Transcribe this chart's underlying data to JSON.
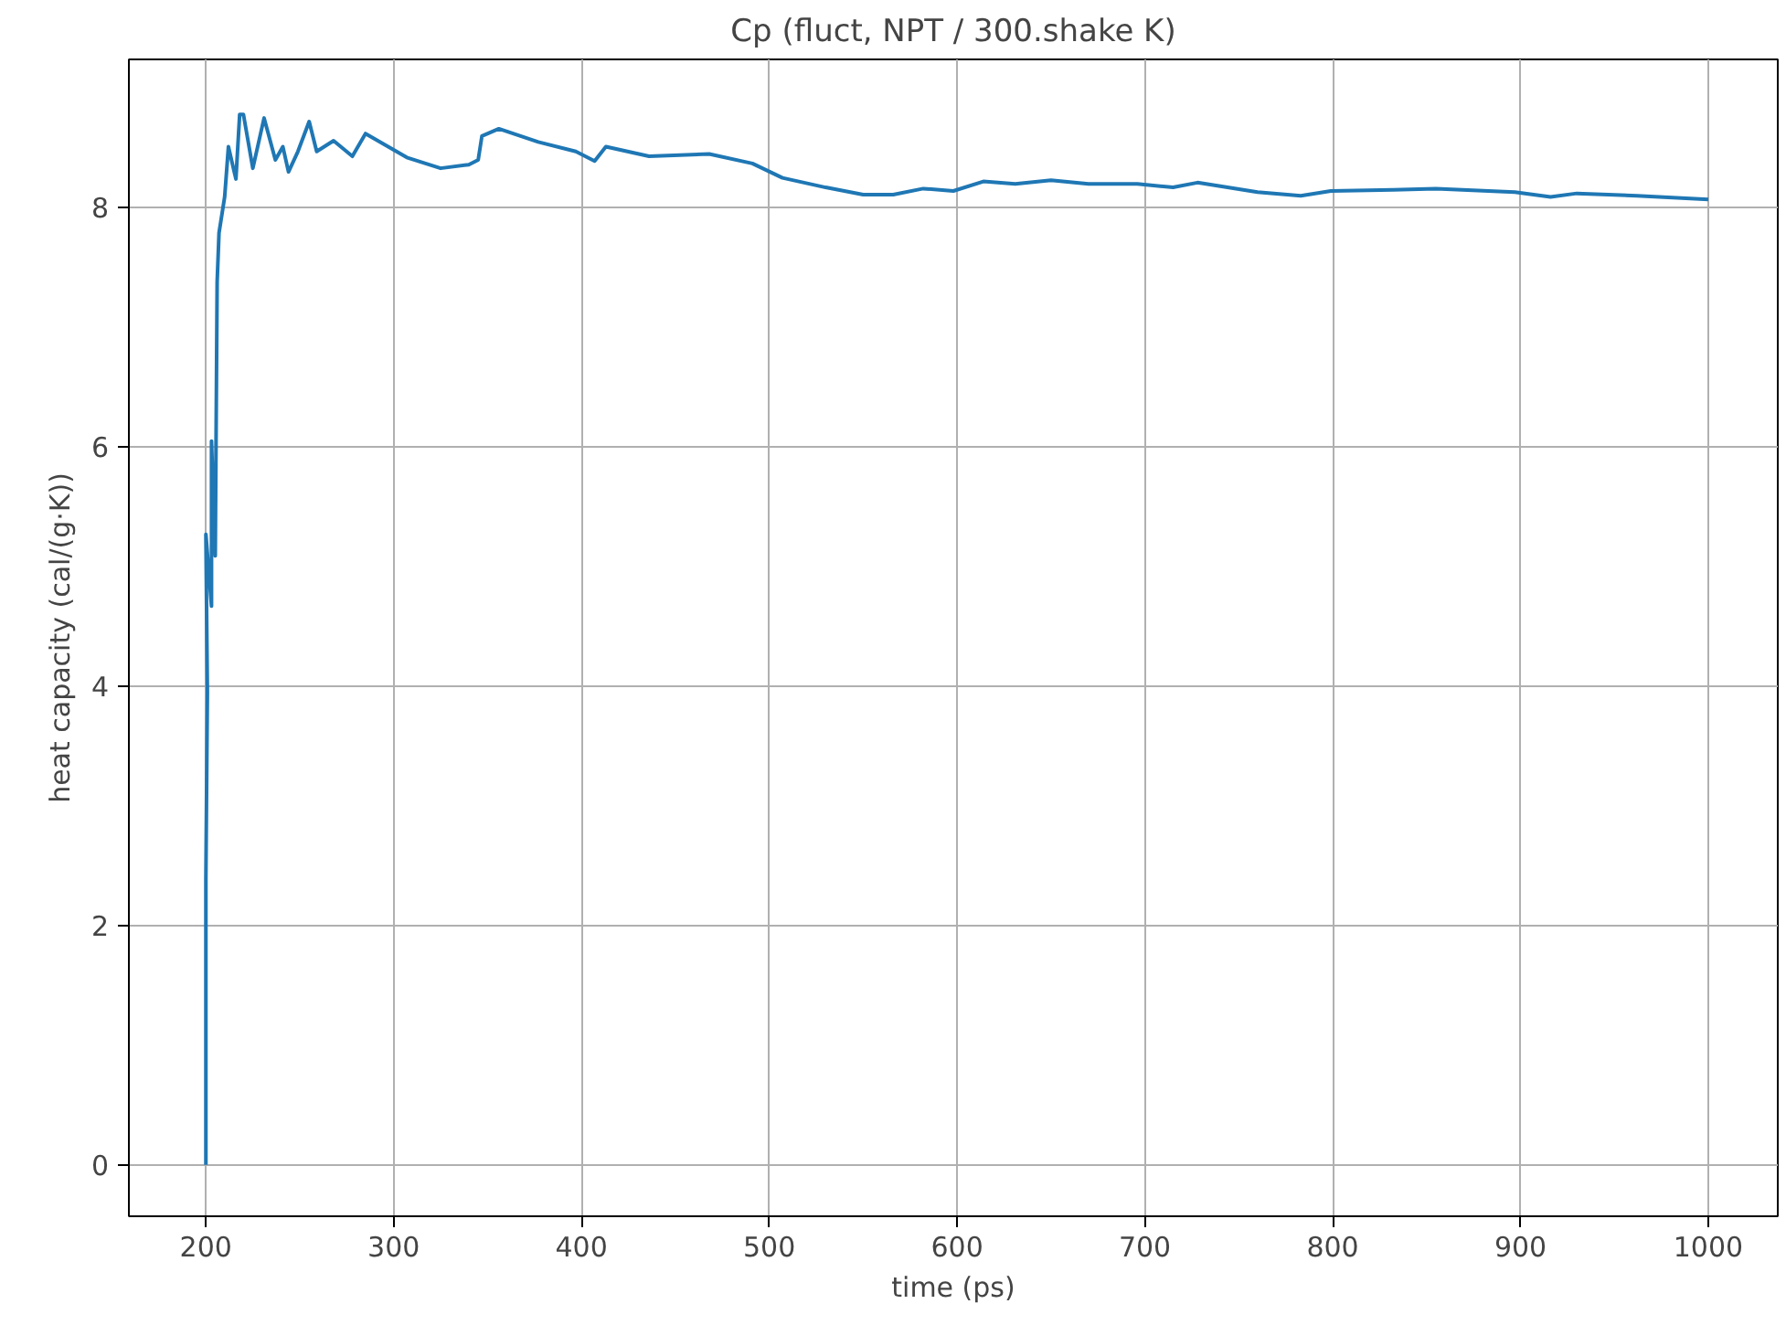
{
  "chart_data": {
    "type": "line",
    "title": "Cp (fluct, NPT / 300.shake K)",
    "xlabel": "time (ps)",
    "ylabel": "heat capacity (cal/(g·K))",
    "x": [
      200,
      200,
      200.8,
      200,
      203,
      203,
      205,
      206,
      207,
      210,
      212,
      216,
      218,
      220,
      225,
      231,
      237,
      241,
      244,
      249,
      255,
      259,
      268,
      278,
      285,
      296,
      307,
      325,
      340,
      345,
      347,
      356,
      377,
      397,
      407,
      413,
      436,
      468,
      491,
      507,
      530,
      550,
      566,
      582,
      598,
      614,
      631,
      650,
      670,
      696,
      715,
      728,
      760,
      783,
      799,
      832,
      855,
      897,
      916,
      930,
      962,
      1000
    ],
    "series": [
      {
        "color": "#1f77b4",
        "values": [
          0,
          2.39,
          3.95,
          5.27,
          4.67,
          6.05,
          5.09,
          7.38,
          7.79,
          8.09,
          8.51,
          8.24,
          8.78,
          8.78,
          8.33,
          8.75,
          8.4,
          8.51,
          8.3,
          8.47,
          8.72,
          8.47,
          8.56,
          8.43,
          8.62,
          8.52,
          8.42,
          8.33,
          8.36,
          8.4,
          8.6,
          8.66,
          8.55,
          8.47,
          8.39,
          8.51,
          8.43,
          8.45,
          8.37,
          8.25,
          8.17,
          8.11,
          8.11,
          8.16,
          8.14,
          8.22,
          8.2,
          8.23,
          8.2,
          8.2,
          8.17,
          8.21,
          8.13,
          8.1,
          8.14,
          8.15,
          8.16,
          8.13,
          8.09,
          8.12,
          8.1,
          8.07
        ]
      }
    ],
    "xlim": [
      159,
      1037
    ],
    "ylim": [
      -0.43,
      9.24
    ],
    "xticks": [
      200,
      300,
      400,
      500,
      600,
      700,
      800,
      900,
      1000
    ],
    "yticks": [
      0,
      2,
      4,
      6,
      8
    ],
    "grid": true,
    "line_style": "solid"
  }
}
